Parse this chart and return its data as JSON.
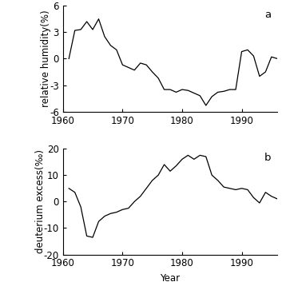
{
  "panel_a": {
    "label": "a",
    "ylabel": "relative humidity(%)",
    "ylim": [
      -6,
      6
    ],
    "yticks": [
      -6,
      -3,
      0,
      3,
      6
    ],
    "years": [
      1961,
      1962,
      1963,
      1964,
      1965,
      1966,
      1967,
      1968,
      1969,
      1970,
      1971,
      1972,
      1973,
      1974,
      1975,
      1976,
      1977,
      1978,
      1979,
      1980,
      1981,
      1982,
      1983,
      1984,
      1985,
      1986,
      1987,
      1988,
      1989,
      1990,
      1991,
      1992,
      1993,
      1994,
      1995,
      1996
    ],
    "values": [
      0.0,
      3.2,
      3.3,
      4.2,
      3.3,
      4.5,
      2.5,
      1.5,
      1.0,
      -0.7,
      -1.0,
      -1.3,
      -0.5,
      -0.7,
      -1.5,
      -2.2,
      -3.5,
      -3.5,
      -3.8,
      -3.5,
      -3.6,
      -3.9,
      -4.2,
      -5.3,
      -4.3,
      -3.8,
      -3.7,
      -3.5,
      -3.5,
      0.8,
      1.0,
      0.3,
      -2.0,
      -1.5,
      0.2,
      0.0
    ]
  },
  "panel_b": {
    "label": "b",
    "ylabel": "deuterium excess(‰)",
    "xlabel": "Year",
    "ylim": [
      -20,
      20
    ],
    "yticks": [
      -20,
      -10,
      0,
      10,
      20
    ],
    "years": [
      1961,
      1962,
      1963,
      1964,
      1965,
      1966,
      1967,
      1968,
      1969,
      1970,
      1971,
      1972,
      1973,
      1974,
      1975,
      1976,
      1977,
      1978,
      1979,
      1980,
      1981,
      1982,
      1983,
      1984,
      1985,
      1986,
      1987,
      1988,
      1989,
      1990,
      1991,
      1992,
      1993,
      1994,
      1995,
      1996
    ],
    "values": [
      5.0,
      3.5,
      -2.0,
      -13.0,
      -13.5,
      -7.5,
      -5.5,
      -4.5,
      -4.0,
      -3.0,
      -2.5,
      0.0,
      2.0,
      5.0,
      8.0,
      10.0,
      14.0,
      11.5,
      13.5,
      16.0,
      17.5,
      16.0,
      17.5,
      17.0,
      10.0,
      8.0,
      5.5,
      5.0,
      4.5,
      5.0,
      4.5,
      1.5,
      -0.5,
      3.5,
      2.0,
      1.0
    ]
  },
  "xlim": [
    1960,
    1996
  ],
  "xticks": [
    1960,
    1970,
    1980,
    1990
  ],
  "xticklabels": [
    "1960",
    "1970",
    "1980",
    "1990"
  ],
  "line_color": "#000000",
  "bg_color": "#ffffff",
  "fontsize": 8.5
}
